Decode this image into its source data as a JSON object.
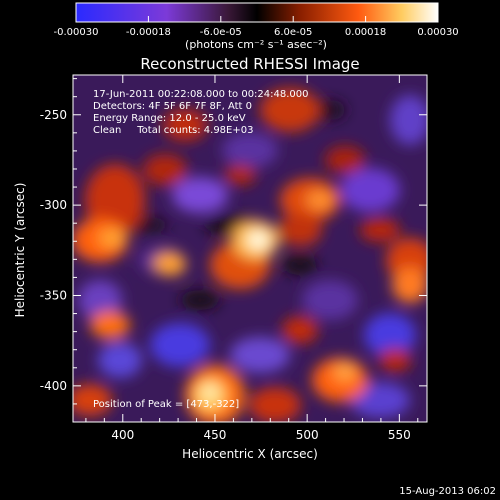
{
  "chart_data": {
    "type": "heatmap",
    "title": "Reconstructed RHESSI Image",
    "xlabel": "Heliocentric X (arcsec)",
    "ylabel": "Heliocentric Y (arcsec)",
    "xlim": [
      373,
      565
    ],
    "ylim": [
      -420,
      -228
    ],
    "xticks": [
      "400",
      "450",
      "500",
      "550"
    ],
    "yticks": [
      "-250",
      "-300",
      "-350",
      "-400"
    ],
    "colorbar": {
      "ticks": [
        "-0.00030",
        "-0.00018",
        "-6.0e-05",
        "6.0e-05",
        "0.00018",
        "0.00030"
      ],
      "unit_label": "(photons cm⁻² s⁻¹ asec⁻²)",
      "range": [
        -0.0003,
        0.0003
      ],
      "colors": [
        "#2a2aff",
        "#7c3ad8",
        "#3a1838",
        "#000000",
        "#8a1f00",
        "#ff5a10",
        "#ffcc60",
        "#ffffff"
      ]
    },
    "info_lines": [
      "17-Jun-2011 00:22:08.000 to 00:24:48.000",
      "Detectors: 4F 5F 6F 7F 8F, Att 0",
      "Energy Range: 12.0 - 25.0 keV",
      "Clean     Total counts: 4.98E+03"
    ],
    "peak_label": "Position of Peak = [473,-322]",
    "peak": {
      "x": 473,
      "y": -322
    },
    "footer_date": "15-Aug-2013 06:02"
  }
}
